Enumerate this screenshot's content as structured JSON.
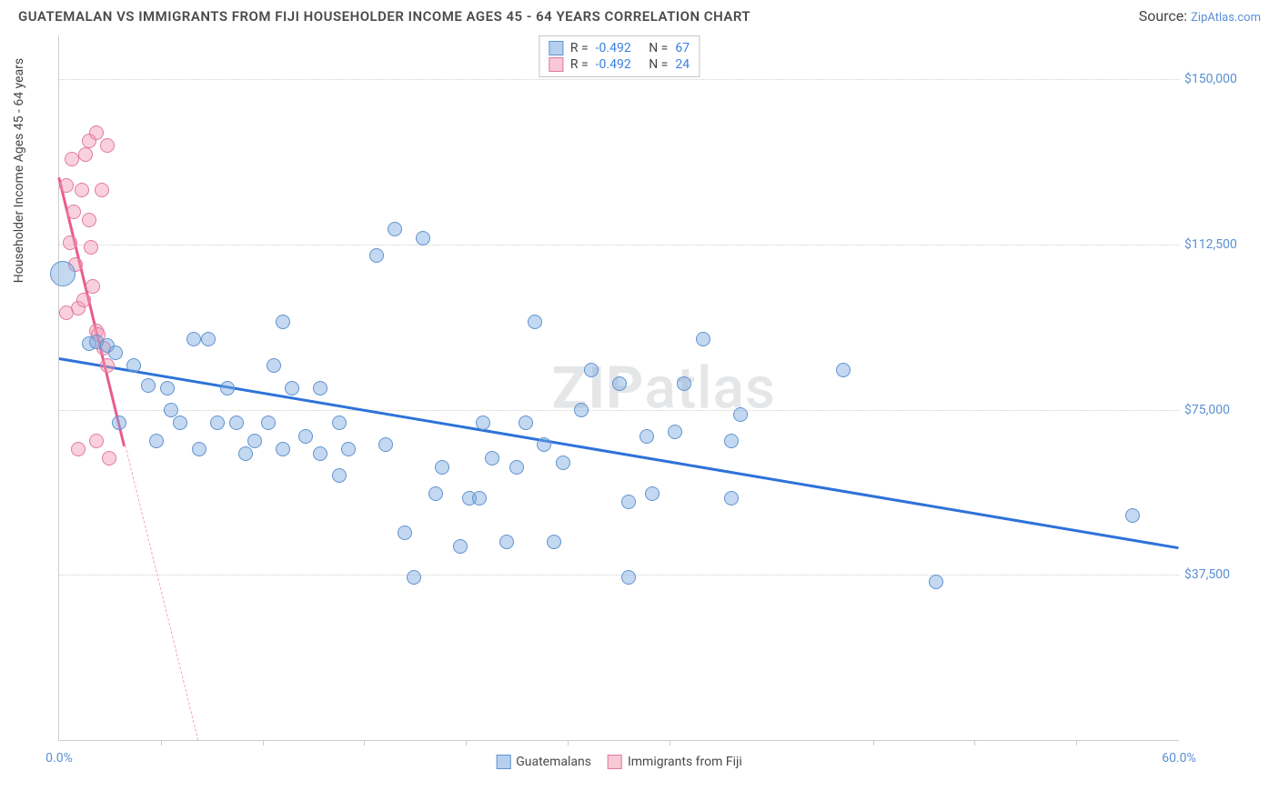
{
  "header": {
    "title": "GUATEMALAN VS IMMIGRANTS FROM FIJI HOUSEHOLDER INCOME AGES 45 - 64 YEARS CORRELATION CHART",
    "source_prefix": "Source: ",
    "source_name": "ZipAtlas.com"
  },
  "watermark": {
    "a": "ZIP",
    "b": "atlas"
  },
  "chart": {
    "type": "scatter",
    "background_color": "#ffffff",
    "grid_color": "#cfcfcf",
    "axis_color": "#cccccc",
    "ylabel": "Householder Income Ages 45 - 64 years",
    "xlim": [
      0,
      60
    ],
    "ylim": [
      0,
      160000
    ],
    "yticks": [
      37500,
      75000,
      112500,
      150000
    ],
    "ytick_labels": [
      "$37,500",
      "$75,000",
      "$112,500",
      "$150,000"
    ],
    "xticks_minor": [
      5.45,
      10.9,
      16.35,
      21.8,
      27.25,
      32.7,
      43.6,
      49.05,
      54.5
    ],
    "x_min_label": "0.0%",
    "x_max_label": "60.0%",
    "point_radius_default": 8,
    "series": {
      "guatemalans": {
        "label": "Guatemalans",
        "color_fill": "rgba(121,169,225,0.45)",
        "color_stroke": "#6193ce",
        "trend_color": "#2d72d9",
        "R": "-0.492",
        "N": "67",
        "trend": {
          "x1": 0,
          "y1": 87000,
          "x2": 60,
          "y2": 44000
        },
        "points": [
          {
            "x": 0.2,
            "y": 106000,
            "r": 14
          },
          {
            "x": 1.6,
            "y": 90000
          },
          {
            "x": 2.0,
            "y": 90500
          },
          {
            "x": 2.6,
            "y": 89500
          },
          {
            "x": 3.0,
            "y": 88000
          },
          {
            "x": 5.8,
            "y": 80000
          },
          {
            "x": 7.2,
            "y": 91000
          },
          {
            "x": 8.0,
            "y": 91000
          },
          {
            "x": 4.0,
            "y": 85000
          },
          {
            "x": 3.2,
            "y": 72000
          },
          {
            "x": 4.8,
            "y": 80500
          },
          {
            "x": 5.2,
            "y": 68000
          },
          {
            "x": 6.5,
            "y": 72000
          },
          {
            "x": 7.5,
            "y": 66000
          },
          {
            "x": 9.0,
            "y": 80000
          },
          {
            "x": 9.5,
            "y": 72000
          },
          {
            "x": 10.5,
            "y": 68000
          },
          {
            "x": 11.2,
            "y": 72000
          },
          {
            "x": 12.0,
            "y": 95000
          },
          {
            "x": 12.0,
            "y": 66000
          },
          {
            "x": 12.5,
            "y": 80000
          },
          {
            "x": 13.2,
            "y": 69000
          },
          {
            "x": 14.0,
            "y": 65000
          },
          {
            "x": 14.0,
            "y": 80000
          },
          {
            "x": 15.0,
            "y": 72000
          },
          {
            "x": 15.5,
            "y": 66000
          },
          {
            "x": 17.0,
            "y": 110000
          },
          {
            "x": 18.0,
            "y": 116000
          },
          {
            "x": 18.5,
            "y": 47000
          },
          {
            "x": 19.5,
            "y": 114000
          },
          {
            "x": 19.0,
            "y": 37000
          },
          {
            "x": 20.2,
            "y": 56000
          },
          {
            "x": 20.5,
            "y": 62000
          },
          {
            "x": 21.5,
            "y": 44000
          },
          {
            "x": 22.0,
            "y": 55000
          },
          {
            "x": 22.7,
            "y": 72000
          },
          {
            "x": 23.2,
            "y": 64000
          },
          {
            "x": 24.0,
            "y": 45000
          },
          {
            "x": 24.5,
            "y": 62000
          },
          {
            "x": 25.0,
            "y": 72000
          },
          {
            "x": 25.5,
            "y": 95000
          },
          {
            "x": 26.0,
            "y": 67000
          },
          {
            "x": 26.5,
            "y": 45000
          },
          {
            "x": 27.0,
            "y": 63000
          },
          {
            "x": 28.0,
            "y": 75000
          },
          {
            "x": 28.5,
            "y": 84000
          },
          {
            "x": 30.0,
            "y": 81000
          },
          {
            "x": 30.5,
            "y": 37000
          },
          {
            "x": 30.5,
            "y": 54000
          },
          {
            "x": 31.5,
            "y": 69000
          },
          {
            "x": 33.0,
            "y": 70000
          },
          {
            "x": 34.5,
            "y": 91000
          },
          {
            "x": 36.0,
            "y": 68000
          },
          {
            "x": 36.5,
            "y": 74000
          },
          {
            "x": 36.0,
            "y": 55000
          },
          {
            "x": 42.0,
            "y": 84000
          },
          {
            "x": 47.0,
            "y": 36000
          },
          {
            "x": 57.5,
            "y": 51000
          },
          {
            "x": 6.0,
            "y": 75000
          },
          {
            "x": 8.5,
            "y": 72000
          },
          {
            "x": 10.0,
            "y": 65000
          },
          {
            "x": 11.5,
            "y": 85000
          },
          {
            "x": 15.0,
            "y": 60000
          },
          {
            "x": 17.5,
            "y": 67000
          },
          {
            "x": 22.5,
            "y": 55000
          },
          {
            "x": 31.8,
            "y": 56000
          },
          {
            "x": 33.5,
            "y": 81000
          }
        ]
      },
      "fiji": {
        "label": "Immigrants from Fiji",
        "color_fill": "rgba(242,154,178,0.45)",
        "color_stroke": "#e279a0",
        "trend_color": "#ea5a8f",
        "R": "-0.492",
        "N": "24",
        "trend": {
          "x1": 0,
          "y1": 128000,
          "x2": 3.5,
          "y2": 67000
        },
        "trend_extrap": {
          "x1": 3.5,
          "y1": 67000,
          "x2": 10.5,
          "y2": -53000
        },
        "points": [
          {
            "x": 0.4,
            "y": 126000
          },
          {
            "x": 0.8,
            "y": 120000
          },
          {
            "x": 1.2,
            "y": 125000
          },
          {
            "x": 1.4,
            "y": 133000
          },
          {
            "x": 1.6,
            "y": 136000
          },
          {
            "x": 2.0,
            "y": 138000
          },
          {
            "x": 2.6,
            "y": 135000
          },
          {
            "x": 0.6,
            "y": 113000
          },
          {
            "x": 0.9,
            "y": 108000
          },
          {
            "x": 1.0,
            "y": 98000
          },
          {
            "x": 1.3,
            "y": 100000
          },
          {
            "x": 1.7,
            "y": 112000
          },
          {
            "x": 1.8,
            "y": 103000
          },
          {
            "x": 2.0,
            "y": 93000
          },
          {
            "x": 2.1,
            "y": 92000
          },
          {
            "x": 2.3,
            "y": 125000
          },
          {
            "x": 2.4,
            "y": 89000
          },
          {
            "x": 2.6,
            "y": 85000
          },
          {
            "x": 1.0,
            "y": 66000
          },
          {
            "x": 2.0,
            "y": 68000
          },
          {
            "x": 0.4,
            "y": 97000
          },
          {
            "x": 1.6,
            "y": 118000
          },
          {
            "x": 0.7,
            "y": 132000
          },
          {
            "x": 2.7,
            "y": 64000
          }
        ]
      }
    }
  },
  "legend_top": {
    "r_label": "R =",
    "n_label": "N ="
  },
  "legend_bottom": {
    "items": [
      {
        "key": "guatemalans"
      },
      {
        "key": "fiji"
      }
    ]
  }
}
